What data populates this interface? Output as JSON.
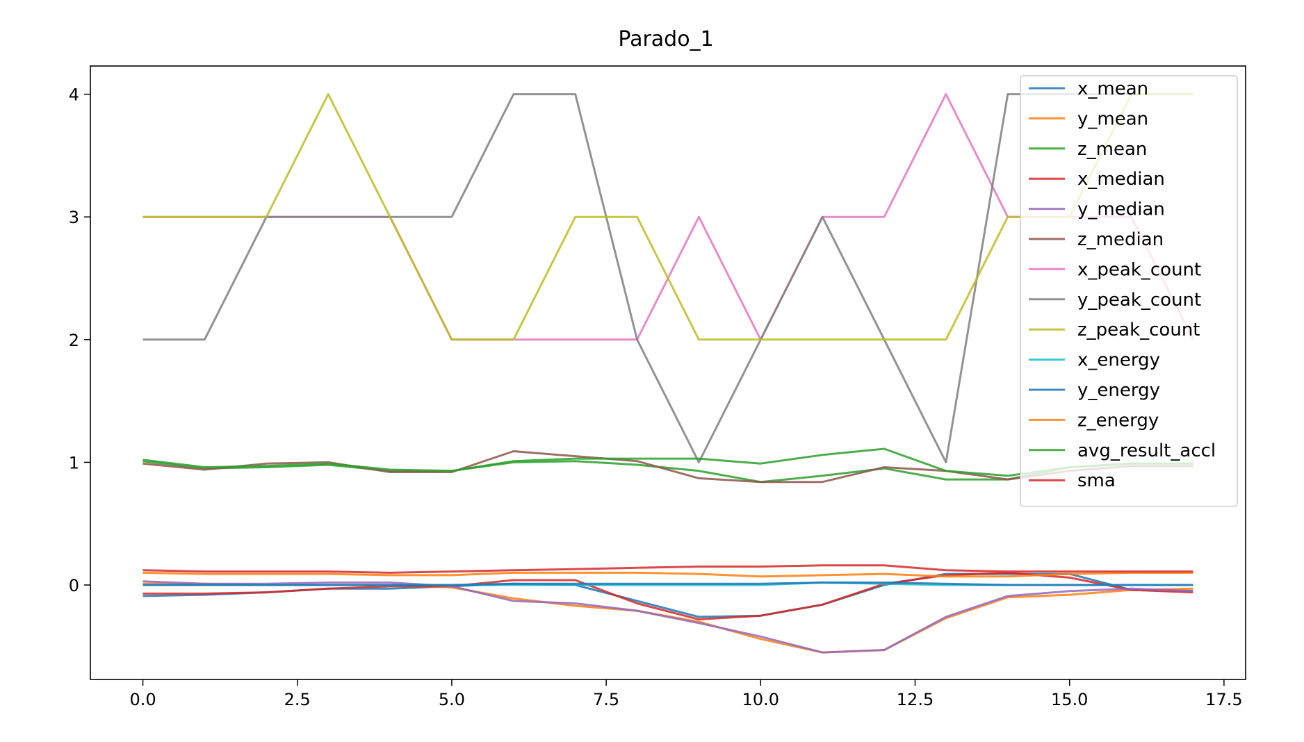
{
  "chart_data": {
    "type": "line",
    "title": "Parado_1",
    "xlabel": "",
    "ylabel": "",
    "xlim": [
      -0.85,
      17.85
    ],
    "ylim": [
      -0.77,
      4.23
    ],
    "x_ticks": [
      0.0,
      2.5,
      5.0,
      7.5,
      10.0,
      12.5,
      15.0,
      17.5
    ],
    "x_tick_labels": [
      "0.0",
      "2.5",
      "5.0",
      "7.5",
      "10.0",
      "12.5",
      "15.0",
      "17.5"
    ],
    "y_ticks": [
      0,
      1,
      2,
      3,
      4
    ],
    "y_tick_labels": [
      "0",
      "1",
      "2",
      "3",
      "4"
    ],
    "grid": false,
    "legend_position": "upper-right",
    "x": [
      0,
      1,
      2,
      3,
      4,
      5,
      6,
      7,
      8,
      9,
      10,
      11,
      12,
      13,
      14,
      15,
      16,
      17
    ],
    "series": [
      {
        "name": "x_mean",
        "color": "#1f77b4",
        "values": [
          -0.09,
          -0.08,
          -0.06,
          -0.03,
          -0.03,
          -0.01,
          0.01,
          0.0,
          -0.13,
          -0.26,
          -0.25,
          -0.16,
          0.0,
          0.09,
          0.09,
          0.09,
          -0.04,
          -0.05
        ]
      },
      {
        "name": "y_mean",
        "color": "#ff7f0e",
        "values": [
          0.01,
          0.01,
          0.0,
          0.0,
          0.0,
          -0.02,
          -0.11,
          -0.17,
          -0.21,
          -0.3,
          -0.44,
          -0.55,
          -0.53,
          -0.27,
          -0.1,
          -0.08,
          -0.04,
          -0.03
        ]
      },
      {
        "name": "z_mean",
        "color": "#2ca02c",
        "values": [
          1.01,
          0.95,
          0.96,
          0.98,
          0.93,
          0.93,
          1.0,
          1.01,
          0.98,
          0.93,
          0.84,
          0.89,
          0.95,
          0.86,
          0.86,
          0.96,
          0.99,
          0.99
        ]
      },
      {
        "name": "x_median",
        "color": "#d62728",
        "values": [
          -0.07,
          -0.07,
          -0.06,
          -0.03,
          -0.01,
          -0.01,
          0.04,
          0.04,
          -0.15,
          -0.28,
          -0.25,
          -0.16,
          0.01,
          0.08,
          0.1,
          0.06,
          -0.04,
          -0.06
        ]
      },
      {
        "name": "y_median",
        "color": "#9467bd",
        "values": [
          0.03,
          0.01,
          0.01,
          0.02,
          0.02,
          -0.01,
          -0.13,
          -0.15,
          -0.21,
          -0.31,
          -0.42,
          -0.55,
          -0.53,
          -0.26,
          -0.09,
          -0.05,
          -0.03,
          -0.05
        ]
      },
      {
        "name": "z_median",
        "color": "#8c564b",
        "values": [
          0.99,
          0.94,
          0.99,
          1.0,
          0.92,
          0.92,
          1.09,
          1.05,
          1.01,
          0.87,
          0.84,
          0.84,
          0.96,
          0.93,
          0.86,
          0.93,
          0.97,
          0.97
        ]
      },
      {
        "name": "x_peak_count",
        "color": "#e377c2",
        "values": [
          3,
          3,
          3,
          3,
          3,
          2,
          2,
          2,
          2,
          3,
          2,
          3,
          3,
          4,
          3,
          3,
          3,
          2
        ]
      },
      {
        "name": "y_peak_count",
        "color": "#7f7f7f",
        "values": [
          2,
          2,
          3,
          3,
          3,
          3,
          4,
          4,
          2,
          1,
          2,
          3,
          2,
          1,
          4,
          4,
          4,
          4
        ]
      },
      {
        "name": "z_peak_count",
        "color": "#bcbd22",
        "values": [
          3,
          3,
          3,
          4,
          3,
          2,
          2,
          3,
          3,
          2,
          2,
          2,
          2,
          2,
          3,
          3,
          4,
          4
        ]
      },
      {
        "name": "x_energy",
        "color": "#17becf",
        "values": [
          0.0,
          0.0,
          0.0,
          0.0,
          0.0,
          0.0,
          0.0,
          0.0,
          0.0,
          0.0,
          0.0,
          0.02,
          0.01,
          0.0,
          0.0,
          0.0,
          0.0,
          0.0
        ]
      },
      {
        "name": "y_energy",
        "color": "#1f77b4",
        "values": [
          0.0,
          0.0,
          0.0,
          0.0,
          0.0,
          0.0,
          0.01,
          0.01,
          0.01,
          0.01,
          0.01,
          0.02,
          0.02,
          0.01,
          0.0,
          0.0,
          0.0,
          0.0
        ]
      },
      {
        "name": "z_energy",
        "color": "#ff7f0e",
        "values": [
          0.1,
          0.09,
          0.09,
          0.09,
          0.08,
          0.08,
          0.1,
          0.1,
          0.1,
          0.09,
          0.07,
          0.08,
          0.09,
          0.07,
          0.07,
          0.09,
          0.1,
          0.1
        ]
      },
      {
        "name": "avg_result_accl",
        "color": "#2ca02c",
        "values": [
          1.02,
          0.96,
          0.97,
          0.99,
          0.94,
          0.93,
          1.01,
          1.03,
          1.03,
          1.03,
          0.99,
          1.06,
          1.11,
          0.93,
          0.89,
          0.96,
          0.99,
          0.99
        ]
      },
      {
        "name": "sma",
        "color": "#d62728",
        "values": [
          0.12,
          0.11,
          0.11,
          0.11,
          0.1,
          0.11,
          0.12,
          0.13,
          0.14,
          0.15,
          0.15,
          0.16,
          0.16,
          0.12,
          0.11,
          0.11,
          0.11,
          0.11
        ]
      }
    ]
  }
}
